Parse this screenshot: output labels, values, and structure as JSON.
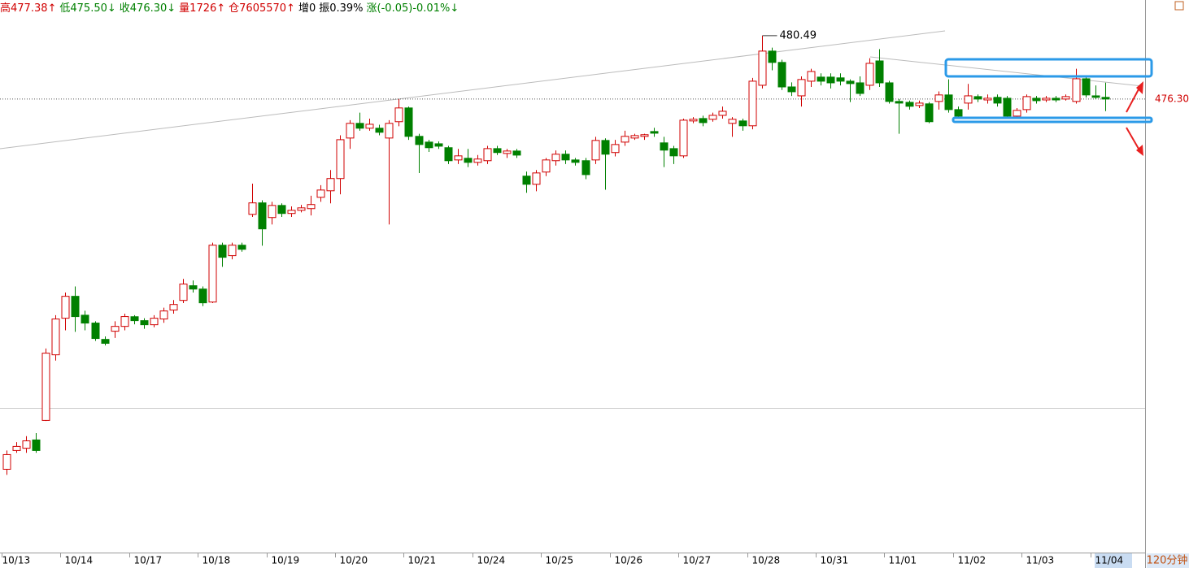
{
  "chart_data": {
    "type": "candlestick",
    "info": [
      {
        "text": "高477.38↑",
        "color": "#d00000"
      },
      {
        "text": "低475.50↓",
        "color": "#008000"
      },
      {
        "text": "收476.30↓",
        "color": "#008000"
      },
      {
        "text": "量1726↑",
        "color": "#d00000"
      },
      {
        "text": "仓7605570↑",
        "color": "#d00000"
      },
      {
        "text": "增0",
        "color": "#000000"
      },
      {
        "text": "振0.39%",
        "color": "#000000"
      },
      {
        "text": "涨(-0.05)-0.01%↓",
        "color": "#008000"
      }
    ],
    "categories": [
      "10/13",
      null,
      null,
      null,
      null,
      null,
      "10/14",
      null,
      null,
      null,
      null,
      null,
      null,
      "10/17",
      null,
      null,
      null,
      null,
      null,
      null,
      "10/18",
      null,
      null,
      null,
      null,
      null,
      null,
      "10/19",
      null,
      null,
      null,
      null,
      null,
      null,
      "10/20",
      null,
      null,
      null,
      null,
      null,
      null,
      "10/21",
      null,
      null,
      null,
      null,
      null,
      null,
      "10/24",
      null,
      null,
      null,
      null,
      null,
      null,
      "10/25",
      null,
      null,
      null,
      null,
      null,
      null,
      "10/26",
      null,
      null,
      null,
      null,
      null,
      null,
      "10/27",
      null,
      null,
      null,
      null,
      null,
      null,
      "10/28",
      null,
      null,
      null,
      null,
      null,
      null,
      "10/31",
      null,
      null,
      null,
      null,
      null,
      null,
      "11/01",
      null,
      null,
      null,
      null,
      null,
      null,
      "11/02",
      null,
      null,
      null,
      null,
      null,
      null,
      "11/03",
      null,
      null,
      null,
      null,
      null,
      null,
      "11/04",
      null
    ],
    "open": [
      451.81,
      453.05,
      453.2,
      453.75,
      455.04,
      459.38,
      461.8,
      463.25,
      462.0,
      461.48,
      460.4,
      460.94,
      461.26,
      461.9,
      461.64,
      461.37,
      461.75,
      462.34,
      462.98,
      463.95,
      463.73,
      462.87,
      466.63,
      465.94,
      466.63,
      468.67,
      469.43,
      468.46,
      469.26,
      468.73,
      468.94,
      469.05,
      469.8,
      470.23,
      471.04,
      473.72,
      474.69,
      474.37,
      474.37,
      473.72,
      474.8,
      475.71,
      473.83,
      473.45,
      473.34,
      473.08,
      472.27,
      472.38,
      472.11,
      472.22,
      473.02,
      472.7,
      472.86,
      471.2,
      470.66,
      471.47,
      472.22,
      472.65,
      472.27,
      472.22,
      472.27,
      473.56,
      472.76,
      473.45,
      473.72,
      473.83,
      474.15,
      473.4,
      473.02,
      472.54,
      474.85,
      475.01,
      474.96,
      475.22,
      474.69,
      474.85,
      474.53,
      477.21,
      479.47,
      478.72,
      477.1,
      476.51,
      477.48,
      477.75,
      477.75,
      477.7,
      477.48,
      477.37,
      477.21,
      478.82,
      477.37,
      476.14,
      476.08,
      475.87,
      475.98,
      476.14,
      476.57,
      475.6,
      476.03,
      476.46,
      476.24,
      476.41,
      476.35,
      475.17,
      475.6,
      476.35,
      476.24,
      476.35,
      476.3,
      476.14,
      477.64,
      476.51,
      476.41
    ],
    "high": [
      453.05,
      453.6,
      454.0,
      454.2,
      459.8,
      462.0,
      463.5,
      463.9,
      462.3,
      461.6,
      460.6,
      461.6,
      462.1,
      462.0,
      461.8,
      462.0,
      462.5,
      463.0,
      464.4,
      464.3,
      463.9,
      466.8,
      466.8,
      466.8,
      466.8,
      470.7,
      469.6,
      469.5,
      469.4,
      469.2,
      469.3,
      469.9,
      470.6,
      471.6,
      473.9,
      474.9,
      475.4,
      475.0,
      474.6,
      474.9,
      476.3,
      475.8,
      474.0,
      473.6,
      473.5,
      473.2,
      473.0,
      473.0,
      472.6,
      473.2,
      473.2,
      473.0,
      473.0,
      471.5,
      471.6,
      472.4,
      472.9,
      472.9,
      472.4,
      472.4,
      473.8,
      473.7,
      473.6,
      474.2,
      474.0,
      474.0,
      474.4,
      473.8,
      473.2,
      475.0,
      475.1,
      475.2,
      475.4,
      475.8,
      475.1,
      475.0,
      477.7,
      480.49,
      479.7,
      478.9,
      477.4,
      477.8,
      478.3,
      478.0,
      478.0,
      478.0,
      477.6,
      477.8,
      479.0,
      479.6,
      477.5,
      476.3,
      476.2,
      476.2,
      476.1,
      476.8,
      477.6,
      475.8,
      477.3,
      476.6,
      476.6,
      476.6,
      476.5,
      475.7,
      476.6,
      476.5,
      476.5,
      476.5,
      476.6,
      478.3,
      477.8,
      477.2,
      477.38
    ],
    "low": [
      451.44,
      452.9,
      452.9,
      452.9,
      455.0,
      459.0,
      461.0,
      460.9,
      461.0,
      460.3,
      460.0,
      460.5,
      461.0,
      461.4,
      461.1,
      461.2,
      461.5,
      462.1,
      462.8,
      463.5,
      462.6,
      462.8,
      465.2,
      465.7,
      466.2,
      468.5,
      466.6,
      468.0,
      468.5,
      468.5,
      468.8,
      468.6,
      469.5,
      469.4,
      470.0,
      473.0,
      474.2,
      474.2,
      473.9,
      468.0,
      474.5,
      473.6,
      471.4,
      472.8,
      473.0,
      472.0,
      472.0,
      471.8,
      471.9,
      472.0,
      472.6,
      472.4,
      472.4,
      470.1,
      470.2,
      471.2,
      471.9,
      472.0,
      471.9,
      471.0,
      472.0,
      470.3,
      472.5,
      473.2,
      473.6,
      473.6,
      473.8,
      471.8,
      472.0,
      472.4,
      474.7,
      474.5,
      474.8,
      475.0,
      473.8,
      474.2,
      474.3,
      477.0,
      478.2,
      476.9,
      476.5,
      475.8,
      477.1,
      477.2,
      477.0,
      477.2,
      476.1,
      476.5,
      476.9,
      477.1,
      476.0,
      474.0,
      475.6,
      475.7,
      474.7,
      475.6,
      475.4,
      475.0,
      475.6,
      476.1,
      476.0,
      475.8,
      475.0,
      475.0,
      475.4,
      476.0,
      476.1,
      476.1,
      476.2,
      476.0,
      476.4,
      476.3,
      475.5
    ],
    "close": [
      452.78,
      453.32,
      453.69,
      453.05,
      459.49,
      461.75,
      463.25,
      461.91,
      461.48,
      460.46,
      460.14,
      461.26,
      461.91,
      461.64,
      461.37,
      461.8,
      462.28,
      462.71,
      464.06,
      463.73,
      462.82,
      466.63,
      465.83,
      466.63,
      466.36,
      469.43,
      467.71,
      469.26,
      468.73,
      468.94,
      469.1,
      469.32,
      470.28,
      471.04,
      473.61,
      474.69,
      474.37,
      474.63,
      474.1,
      474.69,
      475.71,
      473.83,
      473.29,
      473.08,
      473.18,
      472.22,
      472.54,
      472.11,
      472.33,
      473.02,
      472.76,
      472.86,
      472.59,
      470.66,
      471.41,
      472.27,
      472.65,
      472.27,
      472.11,
      471.3,
      473.56,
      472.65,
      473.29,
      473.83,
      473.88,
      473.94,
      474.04,
      472.92,
      472.54,
      474.9,
      474.96,
      474.74,
      475.22,
      475.49,
      474.96,
      474.53,
      477.48,
      479.47,
      478.72,
      477.1,
      476.78,
      477.59,
      478.12,
      477.48,
      477.37,
      477.48,
      477.32,
      476.67,
      478.66,
      477.37,
      476.14,
      476.03,
      475.82,
      476.03,
      474.8,
      476.57,
      475.6,
      475.17,
      476.51,
      476.3,
      476.35,
      476.03,
      475.17,
      475.55,
      476.46,
      476.19,
      476.35,
      476.24,
      476.46,
      477.64,
      476.57,
      476.41,
      476.3
    ],
    "up_color": "#d00000",
    "down_color": "#008000",
    "ylim": [
      446.3,
      482.85
    ],
    "max_label": 480.49,
    "last_price": {
      "value": 476.3,
      "label": "476.30"
    },
    "period": "120分钟"
  }
}
